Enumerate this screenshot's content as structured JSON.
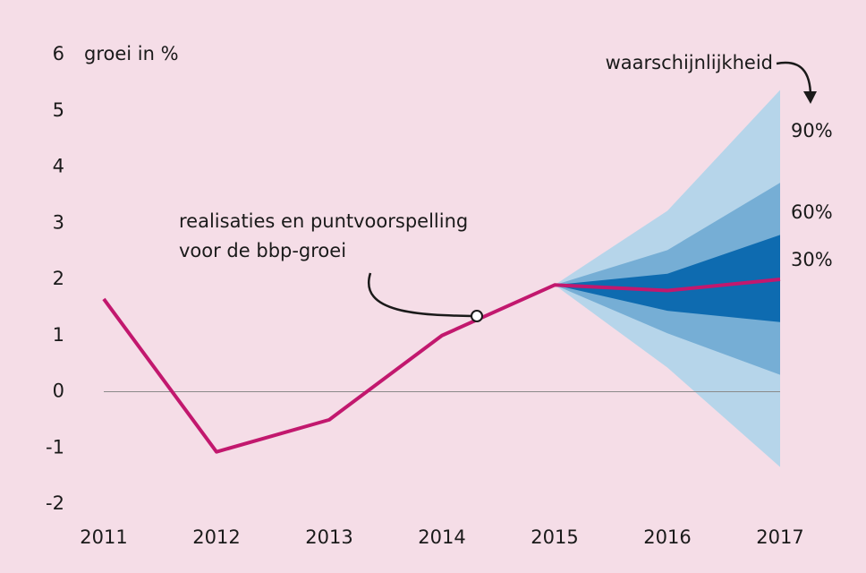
{
  "chart_data": {
    "type": "line",
    "y_label": "groei in %",
    "annotations": {
      "probability": "waarschijnlijkheid",
      "line_note": [
        "realisaties en puntvoorspelling",
        "voor de bbp-groei"
      ]
    },
    "x": [
      2011,
      2012,
      2013,
      2014,
      2015,
      2016,
      2017
    ],
    "series": [
      {
        "color": "#c2186e",
        "values": [
          1.65,
          -1.07,
          -0.5,
          1.0,
          1.9,
          1.8,
          2.0
        ]
      }
    ],
    "bands": {
      "x": [
        2015,
        2016,
        2017
      ],
      "items": [
        {
          "name": "90%",
          "color": "#b6d5ea",
          "lower": [
            1.9,
            0.43,
            -1.34
          ],
          "upper": [
            1.9,
            3.22,
            5.37
          ]
        },
        {
          "name": "60%",
          "color": "#76aed5",
          "lower": [
            1.9,
            1.04,
            0.3
          ],
          "upper": [
            1.9,
            2.52,
            3.72
          ]
        },
        {
          "name": "30%",
          "color": "#0e6bb0",
          "lower": [
            1.9,
            1.44,
            1.24
          ],
          "upper": [
            1.9,
            2.1,
            2.79
          ]
        }
      ]
    },
    "xlim": [
      2011,
      2017
    ],
    "xticks": [
      2011,
      2012,
      2013,
      2014,
      2015,
      2016,
      2017
    ],
    "ylim": [
      -2,
      6
    ],
    "yticks": [
      -2,
      -1,
      0,
      1,
      2,
      3,
      4,
      5,
      6
    ]
  }
}
